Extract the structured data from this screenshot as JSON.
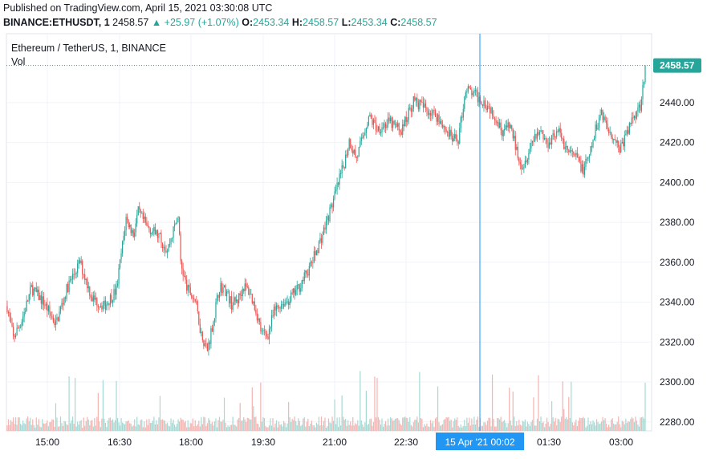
{
  "header": {
    "published": "Published on TradingView.com, April 15, 2021 03:30:08 UTC",
    "symbol": "BINANCE:ETHUSDT, 1",
    "last": "2458.57",
    "change": "▲ +25.97 (+1.07%)",
    "o_label": "O:",
    "o": "2453.34",
    "h_label": "H:",
    "h": "2458.57",
    "l_label": "L:",
    "l": "2453.34",
    "c_label": "C:",
    "c": "2458.57"
  },
  "legend": {
    "title": "Ethereum / TetherUS, 1, BINANCE",
    "volume": "Vol"
  },
  "colors": {
    "up": "#26a69a",
    "down": "#ef5350",
    "up_vol": "#a6d9d3",
    "down_vol": "#f5b3b1",
    "cursor": "#2196f3",
    "grid": "#f0f3fa",
    "price_label": "#26a69a"
  },
  "chart_data": {
    "type": "candlestick",
    "title": "Ethereum / TetherUS, 1, BINANCE",
    "x_tick_labels": [
      "15:00",
      "16:30",
      "18:00",
      "19:30",
      "21:00",
      "22:30",
      "15 Apr '21   00:02",
      "01:30",
      "03:00"
    ],
    "y_tick_labels": [
      "2280.00",
      "2300.00",
      "2320.00",
      "2340.00",
      "2360.00",
      "2380.00",
      "2400.00",
      "2420.00",
      "2440.00"
    ],
    "y_ticks": [
      2280,
      2300,
      2320,
      2340,
      2360,
      2380,
      2400,
      2420,
      2440
    ],
    "ylim": [
      2275.5,
      2474.5
    ],
    "last_price": 2458.57,
    "last_price_label": "2458.57",
    "cursor_label": "15 Apr '21   00:02",
    "price_path": [
      [
        0,
        2338
      ],
      [
        5,
        2322
      ],
      [
        12,
        2331
      ],
      [
        20,
        2347
      ],
      [
        30,
        2340
      ],
      [
        40,
        2329
      ],
      [
        50,
        2348
      ],
      [
        60,
        2360
      ],
      [
        70,
        2342
      ],
      [
        80,
        2338
      ],
      [
        90,
        2346
      ],
      [
        98,
        2382
      ],
      [
        104,
        2374
      ],
      [
        108,
        2385
      ],
      [
        115,
        2378
      ],
      [
        125,
        2373
      ],
      [
        132,
        2366
      ],
      [
        138,
        2378
      ],
      [
        141,
        2384
      ],
      [
        143,
        2360
      ],
      [
        148,
        2347
      ],
      [
        155,
        2341
      ],
      [
        160,
        2324
      ],
      [
        165,
        2316
      ],
      [
        170,
        2331
      ],
      [
        175,
        2348
      ],
      [
        180,
        2346
      ],
      [
        185,
        2339
      ],
      [
        190,
        2341
      ],
      [
        195,
        2348
      ],
      [
        200,
        2345
      ],
      [
        205,
        2336
      ],
      [
        210,
        2324
      ],
      [
        215,
        2324
      ],
      [
        220,
        2335
      ],
      [
        225,
        2339
      ],
      [
        232,
        2341
      ],
      [
        240,
        2347
      ],
      [
        250,
        2358
      ],
      [
        260,
        2374
      ],
      [
        270,
        2393
      ],
      [
        278,
        2410
      ],
      [
        282,
        2421
      ],
      [
        288,
        2412
      ],
      [
        298,
        2433
      ],
      [
        305,
        2427
      ],
      [
        315,
        2430
      ],
      [
        325,
        2426
      ],
      [
        335,
        2441
      ],
      [
        345,
        2437
      ],
      [
        355,
        2433
      ],
      [
        362,
        2426
      ],
      [
        368,
        2421
      ],
      [
        372,
        2422
      ],
      [
        378,
        2447
      ],
      [
        385,
        2444
      ],
      [
        392,
        2441
      ],
      [
        400,
        2436
      ],
      [
        408,
        2426
      ],
      [
        415,
        2428
      ],
      [
        420,
        2416
      ],
      [
        425,
        2408
      ],
      [
        430,
        2416
      ],
      [
        435,
        2424
      ],
      [
        440,
        2426
      ],
      [
        445,
        2419
      ],
      [
        450,
        2424
      ],
      [
        455,
        2425
      ],
      [
        460,
        2418
      ],
      [
        465,
        2414
      ],
      [
        470,
        2412
      ],
      [
        475,
        2406
      ],
      [
        480,
        2413
      ],
      [
        485,
        2426
      ],
      [
        490,
        2436
      ],
      [
        495,
        2427
      ],
      [
        500,
        2423
      ],
      [
        505,
        2417
      ],
      [
        510,
        2423
      ],
      [
        516,
        2433
      ],
      [
        522,
        2439
      ],
      [
        526,
        2458
      ]
    ],
    "volume_note": "Vol bars at bottom, small values with occasional spikes"
  }
}
